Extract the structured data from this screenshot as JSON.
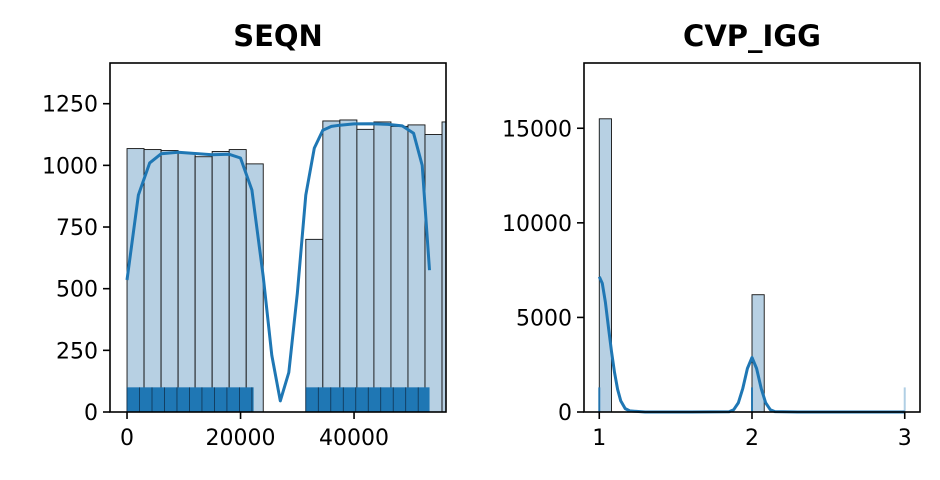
{
  "colors": {
    "bar_fill": "#b7d0e3",
    "bar_edge": "#111111",
    "line": "#1f77b4",
    "rug": "#1f77b4"
  },
  "chart_data": [
    {
      "type": "histogram",
      "title": "SEQN",
      "xlabel": "",
      "ylabel": "",
      "xlim": [
        -3000,
        56200
      ],
      "ylim": [
        0,
        1415
      ],
      "xticks": [
        0,
        20000,
        40000
      ],
      "xtick_labels": [
        "0",
        "20000",
        "40000"
      ],
      "yticks": [
        0,
        250,
        500,
        750,
        1000,
        1250
      ],
      "ytick_labels": [
        "0",
        "250",
        "500",
        "750",
        "1000",
        "1250"
      ],
      "grid": false,
      "bins": [
        {
          "x0": 0,
          "x1": 3000,
          "count": 1068
        },
        {
          "x0": 3000,
          "x1": 6000,
          "count": 1064
        },
        {
          "x0": 6000,
          "x1": 9000,
          "count": 1060
        },
        {
          "x0": 9000,
          "x1": 12000,
          "count": 1052
        },
        {
          "x0": 12000,
          "x1": 15000,
          "count": 1035
        },
        {
          "x0": 15000,
          "x1": 18000,
          "count": 1056
        },
        {
          "x0": 18000,
          "x1": 21000,
          "count": 1064
        },
        {
          "x0": 21000,
          "x1": 24000,
          "count": 1006
        },
        {
          "x0": 31500,
          "x1": 34500,
          "count": 700
        },
        {
          "x0": 34500,
          "x1": 37500,
          "count": 1180
        },
        {
          "x0": 37500,
          "x1": 40500,
          "count": 1184
        },
        {
          "x0": 40500,
          "x1": 43500,
          "count": 1146
        },
        {
          "x0": 43500,
          "x1": 46500,
          "count": 1176
        },
        {
          "x0": 46500,
          "x1": 49500,
          "count": 1158
        },
        {
          "x0": 49500,
          "x1": 52500,
          "count": 1164
        },
        {
          "x0": 52500,
          "x1": 55500,
          "count": 1125
        },
        {
          "x0": 55500,
          "x1": 58500,
          "count": 1176
        }
      ],
      "kde": {
        "x": [
          0,
          2000,
          4000,
          6000,
          9000,
          12000,
          15000,
          18000,
          20000,
          22000,
          24000,
          25500,
          27000,
          28500,
          30000,
          31500,
          33000,
          34500,
          36000,
          37500,
          40000,
          43000,
          46000,
          48500,
          50500,
          52000,
          53300
        ],
        "y": [
          535,
          880,
          1010,
          1047,
          1053,
          1048,
          1043,
          1045,
          1030,
          900,
          550,
          230,
          45,
          160,
          480,
          880,
          1070,
          1142,
          1158,
          1163,
          1168,
          1169,
          1166,
          1160,
          1130,
          1000,
          575
        ]
      },
      "rug": {
        "ranges": [
          [
            0,
            22300
          ],
          [
            31500,
            53300
          ]
        ],
        "spacing": 2200,
        "height": 100
      }
    },
    {
      "type": "histogram",
      "title": "CVP_IGG",
      "xlabel": "",
      "ylabel": "",
      "xlim": [
        0.9,
        3.1
      ],
      "ylim": [
        0,
        18450
      ],
      "xticks": [
        1,
        2,
        3
      ],
      "xtick_labels": [
        "1",
        "2",
        "3"
      ],
      "yticks": [
        0,
        5000,
        10000,
        15000
      ],
      "ytick_labels": [
        "0",
        "5000",
        "10000",
        "15000"
      ],
      "grid": false,
      "bins": [
        {
          "x0": 1.0,
          "x1": 1.08,
          "count": 15500
        },
        {
          "x0": 2.0,
          "x1": 2.08,
          "count": 6200
        }
      ],
      "kde": {
        "x": [
          1.0,
          1.02,
          1.04,
          1.06,
          1.08,
          1.1,
          1.12,
          1.14,
          1.17,
          1.2,
          1.3,
          1.6,
          1.85,
          1.88,
          1.91,
          1.94,
          1.97,
          2.0,
          2.03,
          2.06,
          2.09,
          2.12,
          2.15,
          2.3,
          2.6,
          3.0
        ],
        "y": [
          7150,
          6800,
          5800,
          4500,
          3200,
          2100,
          1200,
          600,
          180,
          60,
          0,
          0,
          10,
          120,
          480,
          1250,
          2300,
          2880,
          2300,
          1250,
          480,
          120,
          20,
          0,
          0,
          0
        ]
      },
      "rug": {
        "ticks": [
          1,
          2,
          3
        ],
        "height": 1300
      }
    }
  ]
}
